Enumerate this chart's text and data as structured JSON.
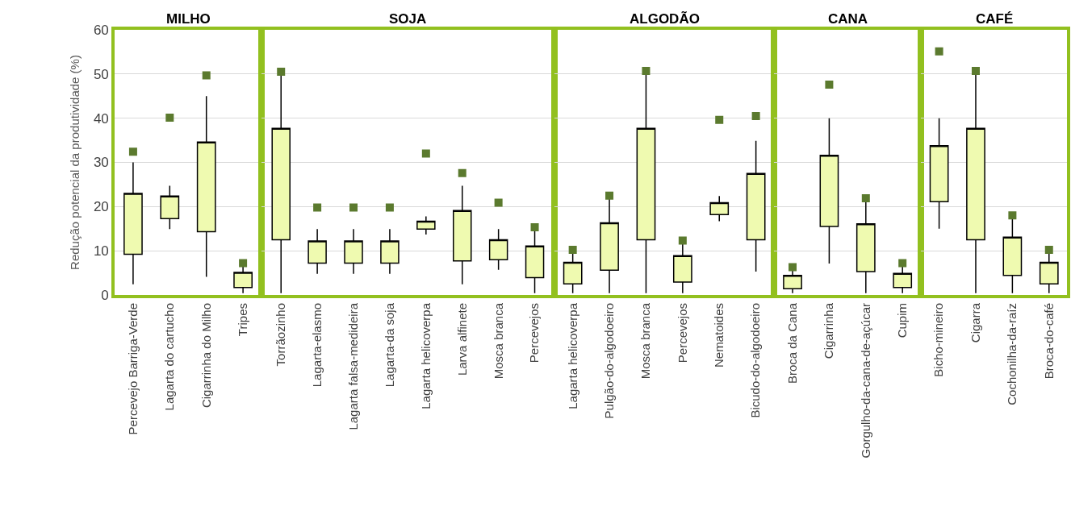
{
  "chart_data": [
    {
      "type": "candlestick",
      "title": "MILHO",
      "ylabel": "Redução potencial da produtividade (%)",
      "categories": [
        "Percevejo Barriga-Verde",
        "Lagarta do cartucho",
        "Cigarrinha do Milho",
        "Tripes"
      ],
      "ohlc": [
        [
          9.2,
          30,
          2.4,
          23
        ],
        [
          17.3,
          24.7,
          14.9,
          22.4
        ],
        [
          14.3,
          45,
          4.1,
          34.6
        ],
        [
          1.7,
          6.8,
          0.4,
          5.1
        ]
      ],
      "color": "#effab0",
      "ylim": [
        0,
        60
      ],
      "yticks": [
        0,
        10,
        20,
        30,
        40,
        50,
        60
      ],
      "grid": "y",
      "series": [
        {
          "type": "scatter",
          "marker": "square",
          "color": "#5b7a2e",
          "values": [
            32.4,
            40.1,
            49.7,
            7.2
          ]
        }
      ]
    },
    {
      "type": "candlestick",
      "title": "SOJA",
      "categories": [
        "Torrãozinho",
        "Lagarta-elasmo",
        "Lagarta falsa-medideira",
        "Lagarta-da soja",
        "Lagarta helicoverpa",
        "Larva alfinete",
        "Mosca branca",
        "Percevejos"
      ],
      "ohlc": [
        [
          12.5,
          50,
          0.4,
          37.7
        ],
        [
          7.2,
          14.9,
          4.8,
          12.2
        ],
        [
          7.2,
          14.9,
          4.8,
          12.2
        ],
        [
          7.2,
          14.9,
          4.8,
          12.2
        ],
        [
          14.9,
          17.8,
          13.7,
          16.7
        ],
        [
          7.7,
          24.7,
          2.4,
          19.1
        ],
        [
          8,
          14.9,
          5.7,
          12.5
        ],
        [
          3.9,
          14.9,
          0.4,
          11.1
        ]
      ],
      "color": "#effab0",
      "ylim": [
        0,
        60
      ],
      "yticks": [
        0,
        10,
        20,
        30,
        40,
        50,
        60
      ],
      "grid": "y",
      "tick_labels": "x",
      "series": [
        {
          "type": "scatter",
          "marker": "square",
          "color": "#5b7a2e",
          "values": [
            50.5,
            19.8,
            19.8,
            19.8,
            32,
            27.6,
            20.9,
            15.3
          ]
        }
      ]
    },
    {
      "type": "candlestick",
      "title": "ALGODÃO",
      "categories": [
        "Lagarta helicoverpa",
        "Pulgão-do-algodoeiro",
        "Mosca branca",
        "Percevejos",
        "Nematoides",
        "Bicudo-do-algodoeiro"
      ],
      "ohlc": [
        [
          2.5,
          9.8,
          0.4,
          7.4
        ],
        [
          5.6,
          21.8,
          0.4,
          16.3
        ],
        [
          12.5,
          50,
          0.4,
          37.7
        ],
        [
          2.9,
          11.6,
          0.4,
          8.9
        ],
        [
          18.2,
          22.4,
          16.7,
          20.9
        ],
        [
          12.5,
          34.9,
          5.3,
          27.5
        ]
      ],
      "color": "#effab0",
      "ylim": [
        0,
        60
      ],
      "yticks": [
        0,
        10,
        20,
        30,
        40,
        50,
        60
      ],
      "grid": "y",
      "tick_labels": "x",
      "series": [
        {
          "type": "scatter",
          "marker": "square",
          "color": "#5b7a2e",
          "values": [
            10.2,
            22.5,
            50.7,
            12.3,
            39.6,
            40.5
          ]
        }
      ]
    },
    {
      "type": "candlestick",
      "title": "CANA",
      "categories": [
        "Broca da Cana",
        "Cigarrinha",
        "Gorgulho-da-cana-de-açúcar",
        "Cupim"
      ],
      "ohlc": [
        [
          1.4,
          5.6,
          0.4,
          4.4
        ],
        [
          15.5,
          40,
          7.1,
          31.6
        ],
        [
          5.3,
          21.1,
          0.4,
          16.1
        ],
        [
          1.7,
          6.8,
          0.4,
          4.9
        ]
      ],
      "color": "#effab0",
      "ylim": [
        0,
        60
      ],
      "yticks": [
        0,
        10,
        20,
        30,
        40,
        50,
        60
      ],
      "grid": "y",
      "tick_labels": "x",
      "series": [
        {
          "type": "scatter",
          "marker": "square",
          "color": "#5b7a2e",
          "values": [
            6.3,
            47.6,
            21.9,
            7.2
          ]
        }
      ]
    },
    {
      "type": "candlestick",
      "title": "CAFÉ",
      "categories": [
        "Bicho-mineiro",
        "Cigarra",
        "Cochonilha-da-raíz",
        "Broca-do-café"
      ],
      "ohlc": [
        [
          21.1,
          40,
          15,
          33.8
        ],
        [
          12.5,
          50,
          0.4,
          37.7
        ],
        [
          4.4,
          17.2,
          0.4,
          13.1
        ],
        [
          2.5,
          9.8,
          0.4,
          7.4
        ]
      ],
      "color": "#effab0",
      "ylim": [
        0,
        60
      ],
      "yticks": [
        0,
        10,
        20,
        30,
        40,
        50,
        60
      ],
      "grid": "y",
      "tick_labels": "x",
      "series": [
        {
          "type": "scatter",
          "marker": "square",
          "color": "#5b7a2e",
          "values": [
            55.1,
            50.7,
            18,
            10.2
          ]
        }
      ]
    }
  ]
}
